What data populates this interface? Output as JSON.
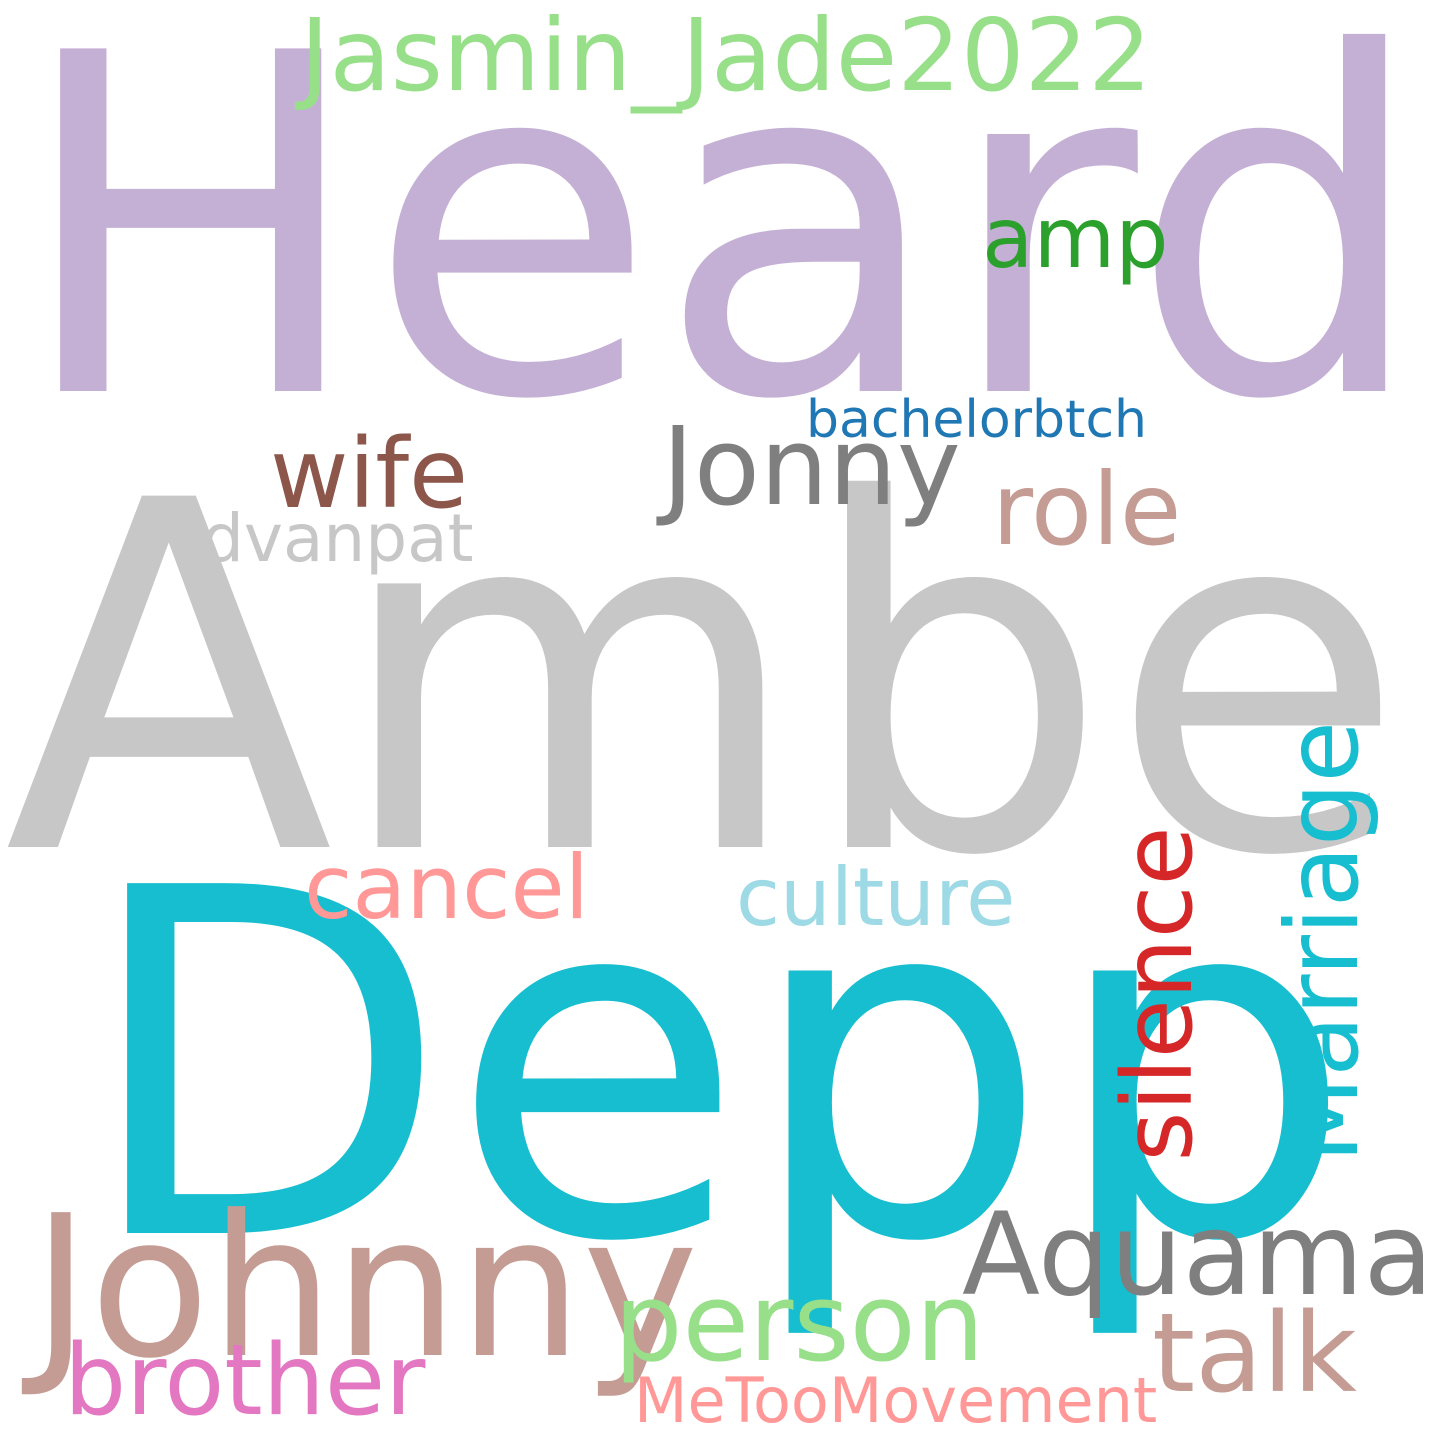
{
  "words": {
    "heard": {
      "text": "Heard",
      "color": "#c5b0d5"
    },
    "amber": {
      "text": "Amber",
      "color": "#c7c7c7"
    },
    "depp": {
      "text": "Depp",
      "color": "#17becf"
    },
    "johnny": {
      "text": "Johnny",
      "color": "#c49c94"
    },
    "jasmin": {
      "text": "Jasmin_Jade2022",
      "color": "#98df8a"
    },
    "amp": {
      "text": "amp",
      "color": "#2ca02c"
    },
    "bachelorbtch": {
      "text": "bachelorbtch",
      "color": "#1f77b4"
    },
    "wife": {
      "text": "wife",
      "color": "#8c564b"
    },
    "jonny": {
      "text": "Jonny",
      "color": "#7f7f7f"
    },
    "role": {
      "text": "role",
      "color": "#c49c94"
    },
    "dvanpat": {
      "text": "dvanpat",
      "color": "#c7c7c7"
    },
    "marriage": {
      "text": "Marriage",
      "color": "#17becf"
    },
    "silence": {
      "text": "silence",
      "color": "#d62728"
    },
    "cancel": {
      "text": "cancel",
      "color": "#ff9896"
    },
    "culture": {
      "text": "culture",
      "color": "#9edae5"
    },
    "aquaman": {
      "text": "Aquaman",
      "color": "#7f7f7f"
    },
    "person": {
      "text": "person",
      "color": "#98df8a"
    },
    "talk": {
      "text": "talk",
      "color": "#c49c94"
    },
    "brother": {
      "text": "brother",
      "color": "#e377c2"
    },
    "metoo": {
      "text": "MeTooMovement",
      "color": "#ff9896"
    }
  }
}
